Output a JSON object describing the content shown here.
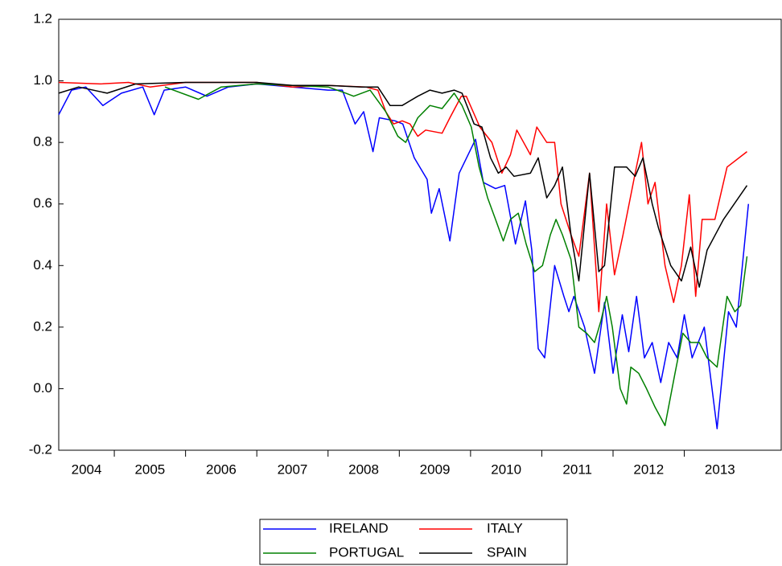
{
  "chart_data": {
    "type": "line",
    "xlim": [
      2004.22,
      2014.36
    ],
    "xticks": [
      2004,
      2005,
      2006,
      2007,
      2008,
      2009,
      2010,
      2011,
      2012,
      2013
    ],
    "ylim": [
      -0.2,
      1.2
    ],
    "yticks": [
      -0.2,
      {
        "value": 0,
        "label": "0.0"
      },
      0.2,
      0.4,
      0.6,
      0.8,
      {
        "value": 1,
        "label": "1.0"
      },
      1.2
    ],
    "grid": false,
    "legend": "bottom",
    "series": [
      {
        "name": "IRELAND",
        "color": "#0000ff",
        "x": [
          2004.22,
          2004.4,
          2004.6,
          2004.84,
          2005.1,
          2005.4,
          2005.56,
          2005.7,
          2006.0,
          2006.3,
          2006.6,
          2007.0,
          2007.5,
          2008.0,
          2008.2,
          2008.38,
          2008.5,
          2008.63,
          2008.72,
          2008.94,
          2009.05,
          2009.21,
          2009.39,
          2009.45,
          2009.56,
          2009.71,
          2009.84,
          2010.07,
          2010.18,
          2010.35,
          2010.48,
          2010.63,
          2010.77,
          2010.86,
          2010.95,
          2011.04,
          2011.18,
          2011.31,
          2011.38,
          2011.45,
          2011.6,
          2011.74,
          2011.88,
          2012.0,
          2012.13,
          2012.22,
          2012.33,
          2012.44,
          2012.55,
          2012.67,
          2012.78,
          2012.9,
          2013.0,
          2013.11,
          2013.28,
          2013.46,
          2013.62,
          2013.73,
          2013.9
        ],
        "values": [
          0.89,
          0.97,
          0.98,
          0.92,
          0.96,
          0.98,
          0.89,
          0.97,
          0.98,
          0.95,
          0.98,
          0.99,
          0.98,
          0.97,
          0.97,
          0.86,
          0.9,
          0.77,
          0.88,
          0.87,
          0.86,
          0.75,
          0.68,
          0.57,
          0.65,
          0.48,
          0.7,
          0.81,
          0.67,
          0.65,
          0.66,
          0.47,
          0.61,
          0.45,
          0.13,
          0.1,
          0.4,
          0.3,
          0.25,
          0.3,
          0.2,
          0.05,
          0.28,
          0.05,
          0.24,
          0.12,
          0.3,
          0.1,
          0.15,
          0.02,
          0.15,
          0.1,
          0.24,
          0.1,
          0.2,
          -0.13,
          0.25,
          0.2,
          0.6
        ]
      },
      {
        "name": "ITALY",
        "color": "#ff0000",
        "x": [
          2004.22,
          2004.8,
          2005.2,
          2005.5,
          2006.0,
          2007.0,
          2007.5,
          2008.0,
          2008.53,
          2008.7,
          2008.81,
          2008.92,
          2009.04,
          2009.15,
          2009.26,
          2009.37,
          2009.6,
          2009.71,
          2009.87,
          2009.94,
          2010.13,
          2010.3,
          2010.44,
          2010.56,
          2010.65,
          2010.84,
          2010.93,
          2011.07,
          2011.18,
          2011.27,
          2011.41,
          2011.52,
          2011.67,
          2011.8,
          2011.91,
          2012.02,
          2012.14,
          2012.31,
          2012.4,
          2012.49,
          2012.59,
          2012.73,
          2012.85,
          2012.96,
          2013.07,
          2013.16,
          2013.25,
          2013.43,
          2013.6,
          2013.88
        ],
        "values": [
          0.995,
          0.99,
          0.995,
          0.98,
          0.995,
          0.995,
          0.98,
          0.985,
          0.98,
          0.97,
          0.9,
          0.86,
          0.87,
          0.86,
          0.82,
          0.84,
          0.83,
          0.88,
          0.95,
          0.95,
          0.85,
          0.8,
          0.7,
          0.76,
          0.84,
          0.76,
          0.85,
          0.8,
          0.8,
          0.6,
          0.5,
          0.43,
          0.7,
          0.25,
          0.6,
          0.37,
          0.5,
          0.7,
          0.8,
          0.6,
          0.67,
          0.4,
          0.28,
          0.4,
          0.63,
          0.3,
          0.55,
          0.55,
          0.72,
          0.77
        ]
      },
      {
        "name": "PORTUGAL",
        "color": "#008000",
        "x": [
          2005.71,
          2006.18,
          2006.5,
          2007.0,
          2008.0,
          2008.25,
          2008.36,
          2008.59,
          2008.81,
          2008.98,
          2009.09,
          2009.26,
          2009.43,
          2009.6,
          2009.77,
          2009.88,
          2010.01,
          2010.12,
          2010.24,
          2010.35,
          2010.46,
          2010.56,
          2010.67,
          2010.78,
          2010.9,
          2011.01,
          2011.12,
          2011.2,
          2011.29,
          2011.41,
          2011.52,
          2011.63,
          2011.74,
          2011.83,
          2011.91,
          2011.99,
          2012.1,
          2012.19,
          2012.25,
          2012.36,
          2012.47,
          2012.59,
          2012.73,
          2012.87,
          2012.98,
          2013.09,
          2013.21,
          2013.32,
          2013.46,
          2013.6,
          2013.71,
          2013.79,
          2013.88
        ],
        "values": [
          0.98,
          0.94,
          0.98,
          0.99,
          0.98,
          0.96,
          0.95,
          0.97,
          0.9,
          0.82,
          0.8,
          0.88,
          0.92,
          0.91,
          0.96,
          0.92,
          0.85,
          0.72,
          0.62,
          0.55,
          0.48,
          0.55,
          0.57,
          0.47,
          0.38,
          0.4,
          0.5,
          0.55,
          0.5,
          0.42,
          0.2,
          0.18,
          0.15,
          0.22,
          0.3,
          0.2,
          0.0,
          -0.05,
          0.07,
          0.05,
          0.0,
          -0.06,
          -0.12,
          0.05,
          0.18,
          0.15,
          0.15,
          0.1,
          0.07,
          0.3,
          0.25,
          0.27,
          0.43
        ]
      },
      {
        "name": "SPAIN",
        "color": "#000000",
        "x": [
          2004.22,
          2004.5,
          2004.9,
          2005.3,
          2006.0,
          2007.0,
          2007.5,
          2008.0,
          2008.47,
          2008.7,
          2008.87,
          2009.04,
          2009.26,
          2009.43,
          2009.6,
          2009.77,
          2009.88,
          2010.05,
          2010.16,
          2010.28,
          2010.39,
          2010.5,
          2010.61,
          2010.84,
          2010.95,
          2011.07,
          2011.18,
          2011.29,
          2011.41,
          2011.52,
          2011.67,
          2011.8,
          2011.88,
          2012.02,
          2012.19,
          2012.31,
          2012.42,
          2012.55,
          2012.64,
          2012.81,
          2012.96,
          2013.09,
          2013.21,
          2013.32,
          2013.55,
          2013.88
        ],
        "values": [
          0.96,
          0.98,
          0.96,
          0.99,
          0.995,
          0.995,
          0.985,
          0.985,
          0.98,
          0.98,
          0.92,
          0.92,
          0.95,
          0.97,
          0.96,
          0.97,
          0.96,
          0.86,
          0.85,
          0.75,
          0.7,
          0.72,
          0.69,
          0.7,
          0.75,
          0.62,
          0.66,
          0.72,
          0.5,
          0.35,
          0.7,
          0.38,
          0.4,
          0.72,
          0.72,
          0.69,
          0.75,
          0.6,
          0.52,
          0.4,
          0.35,
          0.46,
          0.33,
          0.45,
          0.55,
          0.66
        ]
      }
    ]
  }
}
